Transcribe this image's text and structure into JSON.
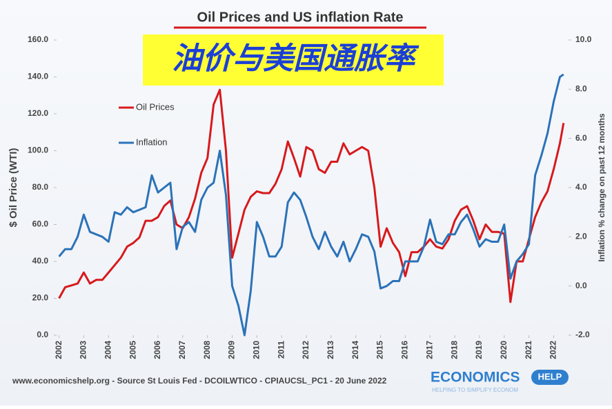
{
  "chart_data": {
    "type": "line",
    "title": "Oil Prices and US inflation Rate",
    "subtitle": "油价与美国通胀率",
    "ylabel": "$ Oil Price (WTI)",
    "y2label": "Inflation % change on past 12 months",
    "source": "www.economicshelp.org -  Source St Louis Fed - DCOILWTICO - CPIAUCSL_PC1 - 20 June 2022",
    "logo": {
      "main": "ECONOMICS",
      "badge": "HELP",
      "tagline": "HELPING TO SIMPLIFY ECONOM"
    },
    "legend": "upper left",
    "x": [
      2002,
      2002.25,
      2002.5,
      2002.75,
      2003,
      2003.25,
      2003.5,
      2003.75,
      2004,
      2004.25,
      2004.5,
      2004.75,
      2005,
      2005.25,
      2005.5,
      2005.75,
      2006,
      2006.25,
      2006.5,
      2006.75,
      2007,
      2007.25,
      2007.5,
      2007.75,
      2008,
      2008.25,
      2008.5,
      2008.75,
      2009,
      2009.25,
      2009.5,
      2009.75,
      2010,
      2010.25,
      2010.5,
      2010.75,
      2011,
      2011.25,
      2011.5,
      2011.75,
      2012,
      2012.25,
      2012.5,
      2012.75,
      2013,
      2013.25,
      2013.5,
      2013.75,
      2014,
      2014.25,
      2014.5,
      2014.75,
      2015,
      2015.25,
      2015.5,
      2015.75,
      2016,
      2016.25,
      2016.5,
      2016.75,
      2017,
      2017.25,
      2017.5,
      2017.75,
      2018,
      2018.25,
      2018.5,
      2018.75,
      2019,
      2019.25,
      2019.5,
      2019.75,
      2020,
      2020.25,
      2020.5,
      2020.75,
      2021,
      2021.25,
      2021.5,
      2021.75,
      2022,
      2022.25,
      2022.4
    ],
    "series": [
      {
        "name": "Oil Prices",
        "color": "#d7191c",
        "values": [
          20,
          26,
          27,
          28,
          34,
          28,
          30,
          30,
          34,
          38,
          42,
          48,
          50,
          53,
          62,
          62,
          64,
          70,
          73,
          60,
          58,
          64,
          74,
          88,
          96,
          125,
          133,
          100,
          42,
          55,
          68,
          75,
          78,
          77,
          77,
          82,
          90,
          105,
          96,
          86,
          102,
          100,
          90,
          88,
          94,
          94,
          104,
          98,
          100,
          102,
          100,
          80,
          48,
          58,
          50,
          45,
          32,
          45,
          45,
          48,
          52,
          48,
          47,
          52,
          62,
          68,
          70,
          62,
          52,
          60,
          56,
          56,
          55,
          18,
          40,
          40,
          52,
          64,
          72,
          78,
          90,
          104,
          115
        ]
      },
      {
        "name": "Inflation",
        "color": "#2b72b8",
        "axis": "y2",
        "values": [
          1.2,
          1.5,
          1.5,
          2.0,
          2.9,
          2.2,
          2.1,
          2.0,
          1.8,
          3.0,
          2.9,
          3.2,
          3.0,
          3.1,
          3.2,
          4.5,
          3.8,
          4.0,
          4.2,
          1.5,
          2.4,
          2.6,
          2.2,
          3.5,
          4.0,
          4.2,
          5.5,
          3.7,
          0.0,
          -0.8,
          -2.0,
          -0.2,
          2.6,
          2.0,
          1.2,
          1.2,
          1.6,
          3.4,
          3.8,
          3.5,
          2.8,
          2.0,
          1.5,
          2.2,
          1.6,
          1.2,
          1.8,
          1.0,
          1.5,
          2.1,
          2.0,
          1.4,
          -0.1,
          0.0,
          0.2,
          0.2,
          1.0,
          1.0,
          1.0,
          1.6,
          2.7,
          1.8,
          1.7,
          2.1,
          2.1,
          2.6,
          2.9,
          2.3,
          1.6,
          1.9,
          1.8,
          1.8,
          2.5,
          0.3,
          1.0,
          1.3,
          1.7,
          4.5,
          5.3,
          6.2,
          7.5,
          8.5,
          8.6
        ]
      }
    ],
    "xlim": [
      2001.9,
      2022.6
    ],
    "xticks": [
      2002,
      2003,
      2004,
      2005,
      2006,
      2007,
      2008,
      2009,
      2010,
      2011,
      2012,
      2013,
      2014,
      2015,
      2016,
      2017,
      2018,
      2019,
      2020,
      2021,
      2022
    ],
    "ylim": [
      0,
      160
    ],
    "yticks": [
      {
        "value": 0,
        "label": "0.0"
      },
      {
        "value": 20,
        "label": "20.0"
      },
      {
        "value": 40,
        "label": "40.0"
      },
      {
        "value": 60,
        "label": "60.0"
      },
      {
        "value": 80,
        "label": "80.0"
      },
      {
        "value": 100,
        "label": "100.0"
      },
      {
        "value": 120,
        "label": "120.0"
      },
      {
        "value": 140,
        "label": "140.0"
      },
      {
        "value": 160,
        "label": "160.0"
      }
    ],
    "y2lim": [
      -2,
      10
    ],
    "y2ticks": [
      {
        "value": -2,
        "label": "-2.0"
      },
      {
        "value": 0,
        "label": "0.0"
      },
      {
        "value": 2,
        "label": "2.0"
      },
      {
        "value": 4,
        "label": "4.0"
      },
      {
        "value": 6,
        "label": "6.0"
      },
      {
        "value": 8,
        "label": "8.0"
      },
      {
        "value": 10,
        "label": "10.0"
      }
    ]
  }
}
